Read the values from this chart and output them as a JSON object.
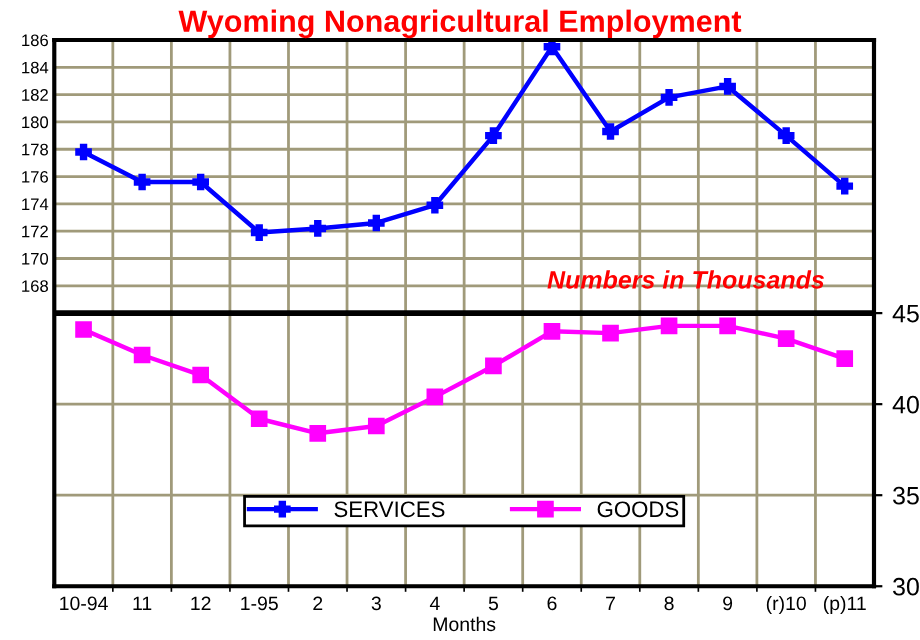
{
  "chart_data": {
    "type": "line",
    "title": "Wyoming Nonagricultural Employment",
    "xlabel": "Months",
    "annotations": [
      "Numbers in Thousands"
    ],
    "categories": [
      "10-94",
      "11",
      "12",
      "1-95",
      "2",
      "3",
      "4",
      "5",
      "6",
      "7",
      "8",
      "9",
      "(r)10",
      "(p)11"
    ],
    "series": [
      {
        "name": "SERVICES",
        "color": "#0000ff",
        "marker": "cross",
        "values": [
          177.8,
          175.6,
          175.6,
          171.9,
          172.2,
          172.6,
          173.9,
          179.0,
          185.5,
          179.3,
          181.8,
          182.6,
          179.0,
          175.3
        ]
      },
      {
        "name": "GOODS",
        "color": "#ff00ff",
        "marker": "square",
        "axis": "y2",
        "values": [
          44.1,
          42.7,
          41.6,
          39.2,
          38.4,
          38.8,
          40.4,
          42.1,
          44.0,
          43.9,
          44.3,
          44.3,
          43.6,
          42.5
        ]
      }
    ],
    "ylim": [
      146,
      186
    ],
    "yticks": [
      168,
      170,
      172,
      174,
      176,
      178,
      180,
      182,
      184,
      186
    ],
    "y2lim": [
      30,
      60
    ],
    "y2ticks": [
      30,
      35,
      40,
      45
    ],
    "ref_lines": [
      {
        "axis": "y2",
        "value": 45,
        "color": "#000000"
      }
    ],
    "grid": true,
    "legend": "bottom",
    "line_style": "solid"
  }
}
